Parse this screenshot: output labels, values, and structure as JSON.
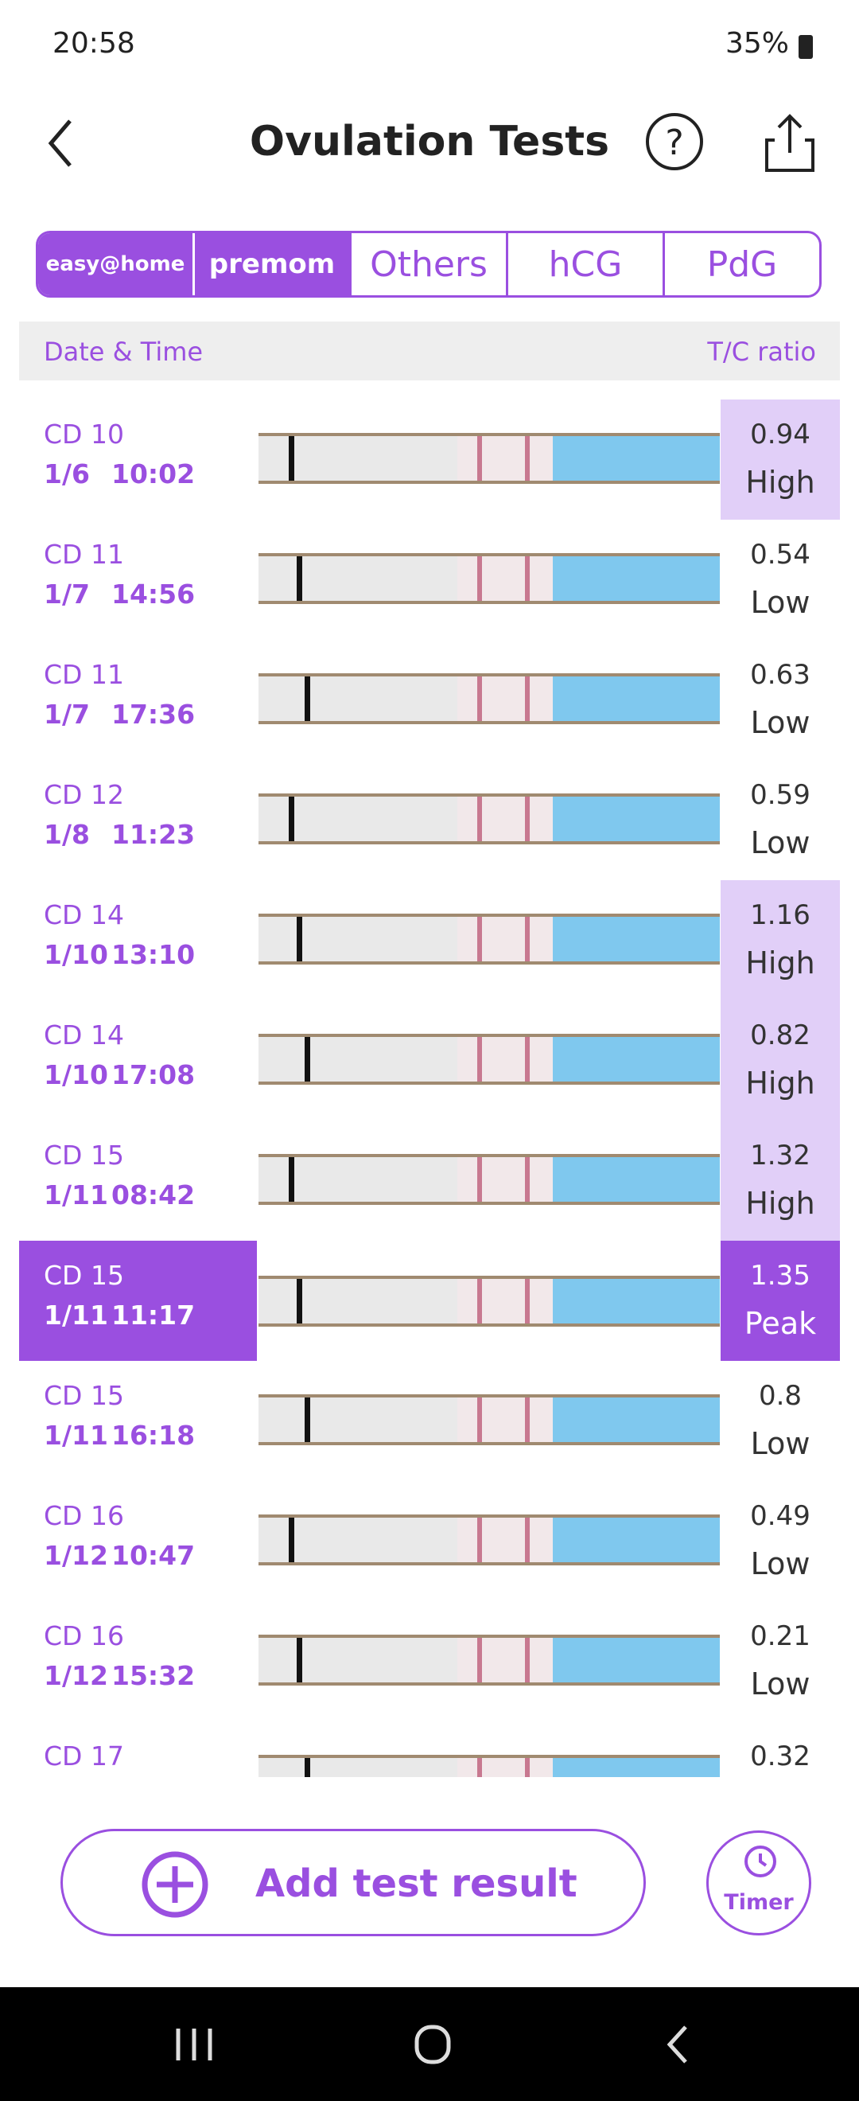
{
  "status_bar": {
    "time": "20:58",
    "battery": "35%"
  },
  "header": {
    "title": "Ovulation Tests"
  },
  "tabs": [
    "easy@home",
    "premom",
    "Others",
    "hCG",
    "PdG"
  ],
  "table": {
    "columns": [
      "Date & Time",
      "T/C ratio"
    ],
    "rows": [
      {
        "cycle_day": "CD 10",
        "date": "1/6",
        "time": "10:02",
        "ratio": "0.94",
        "level": "High"
      },
      {
        "cycle_day": "CD 11",
        "date": "1/7",
        "time": "14:56",
        "ratio": "0.54",
        "level": "Low"
      },
      {
        "cycle_day": "CD 11",
        "date": "1/7",
        "time": "17:36",
        "ratio": "0.63",
        "level": "Low"
      },
      {
        "cycle_day": "CD 12",
        "date": "1/8",
        "time": "11:23",
        "ratio": "0.59",
        "level": "Low"
      },
      {
        "cycle_day": "CD 14",
        "date": "1/10",
        "time": "13:10",
        "ratio": "1.16",
        "level": "High"
      },
      {
        "cycle_day": "CD 14",
        "date": "1/10",
        "time": "17:08",
        "ratio": "0.82",
        "level": "High"
      },
      {
        "cycle_day": "CD 15",
        "date": "1/11",
        "time": "08:42",
        "ratio": "1.32",
        "level": "High"
      },
      {
        "cycle_day": "CD 15",
        "date": "1/11",
        "time": "11:17",
        "ratio": "1.35",
        "level": "Peak"
      },
      {
        "cycle_day": "CD 15",
        "date": "1/11",
        "time": "16:18",
        "ratio": "0.8",
        "level": "Low"
      },
      {
        "cycle_day": "CD 16",
        "date": "1/12",
        "time": "10:47",
        "ratio": "0.49",
        "level": "Low"
      },
      {
        "cycle_day": "CD 16",
        "date": "1/12",
        "time": "15:32",
        "ratio": "0.21",
        "level": "Low"
      },
      {
        "cycle_day": "CD 17",
        "ratio": "0.32"
      }
    ]
  },
  "buttons": {
    "add": "Add test result",
    "timer": "Timer"
  }
}
